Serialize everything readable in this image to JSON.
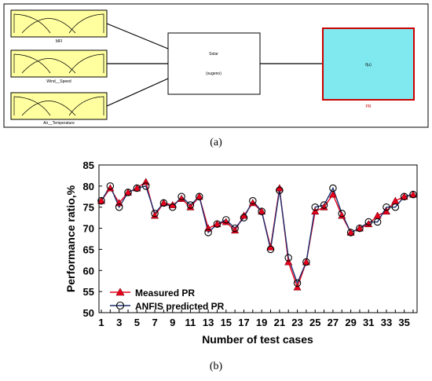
{
  "diagram": {
    "inputs": [
      {
        "label": "MFI"
      },
      {
        "label": "Wind__Speed"
      },
      {
        "label": "Air__Temperature"
      }
    ],
    "system": {
      "name": "Solar",
      "type": "(sugeno)"
    },
    "output": {
      "box_text": "f(u)",
      "label": "PR"
    },
    "panel_label": "(a)",
    "colors": {
      "mf_box": "#ffffa0",
      "output_fill": "#7fe9ef",
      "output_border": "#cc0000"
    }
  },
  "chart_data": {
    "type": "line",
    "title": "",
    "xlabel": "Number of test cases",
    "ylabel": "Performance ratio,%",
    "ylim": [
      50,
      85
    ],
    "xlim": [
      1,
      36
    ],
    "y_ticks": [
      50,
      55,
      60,
      65,
      70,
      75,
      80,
      85
    ],
    "x_ticks": [
      1,
      3,
      5,
      7,
      9,
      11,
      13,
      15,
      17,
      19,
      21,
      23,
      25,
      27,
      29,
      31,
      33,
      35
    ],
    "x": [
      1,
      2,
      3,
      4,
      5,
      6,
      7,
      8,
      9,
      10,
      11,
      12,
      13,
      14,
      15,
      16,
      17,
      18,
      19,
      20,
      21,
      22,
      23,
      24,
      25,
      26,
      27,
      28,
      29,
      30,
      31,
      32,
      33,
      34,
      35,
      36
    ],
    "legend_position": "bottom-left",
    "grid": false,
    "series": [
      {
        "name": "Measured PR",
        "color": "#e8001c",
        "marker": "triangle",
        "values": [
          76.5,
          79.5,
          76,
          78.5,
          79.5,
          81,
          73,
          76,
          75.5,
          77,
          75,
          77.5,
          70,
          71,
          71.5,
          69.5,
          73,
          76,
          74,
          65.5,
          79.5,
          62,
          56,
          62,
          74,
          75,
          78,
          73,
          69,
          70,
          71,
          73,
          74,
          76.5,
          77.5,
          78
        ]
      },
      {
        "name": "ANFIS predicted PR",
        "color": "#1c2e6e",
        "marker": "circle",
        "values": [
          76.5,
          80,
          75,
          78.5,
          79.5,
          80,
          73.5,
          76,
          75,
          77.5,
          75.5,
          77.5,
          69,
          71,
          72,
          70,
          72.5,
          76.5,
          74,
          65,
          79,
          63,
          57,
          62,
          75,
          75.5,
          79.5,
          73.5,
          69,
          70,
          71.5,
          71.5,
          75,
          75,
          77.5,
          78
        ]
      }
    ]
  },
  "panel_label_b": "(b)"
}
